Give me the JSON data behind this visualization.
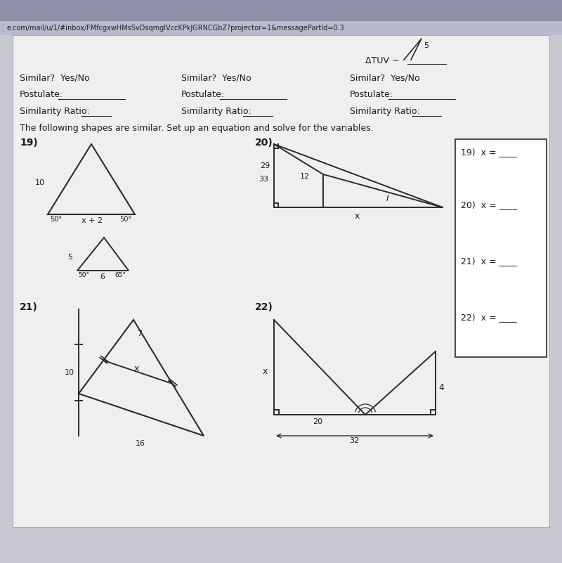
{
  "bg_color": "#c8c8d0",
  "paper_color": "#efefef",
  "text_color": "#1a1a1a",
  "line_color": "#2a2a2a",
  "url_text": "e.com/mail/u/1/#inbox/FMfcgxwHMsSvDsqmglVccKPkJGRNCGbZ?projector=1&messagePartId=0.3",
  "title_text": "The following shapes are similar. Set up an equation and solve for the variables.",
  "similar_labels": [
    "Similar?  Yes/No",
    "Similar?  Yes/No",
    "Similar?  Yes/No"
  ],
  "postulate_labels": [
    "Postulate:",
    "Postulate:",
    "Postulate:"
  ],
  "ratio_labels": [
    "Similarity Ratio:",
    "Similarity Ratio:",
    "Similarity Ratio:"
  ],
  "answer_labels": [
    "19)  x = ____",
    "20)  x = ____",
    "21)  x = ____",
    "22)  x = ____"
  ],
  "num_labels": [
    "19)",
    "20)",
    "21)",
    "22)"
  ]
}
